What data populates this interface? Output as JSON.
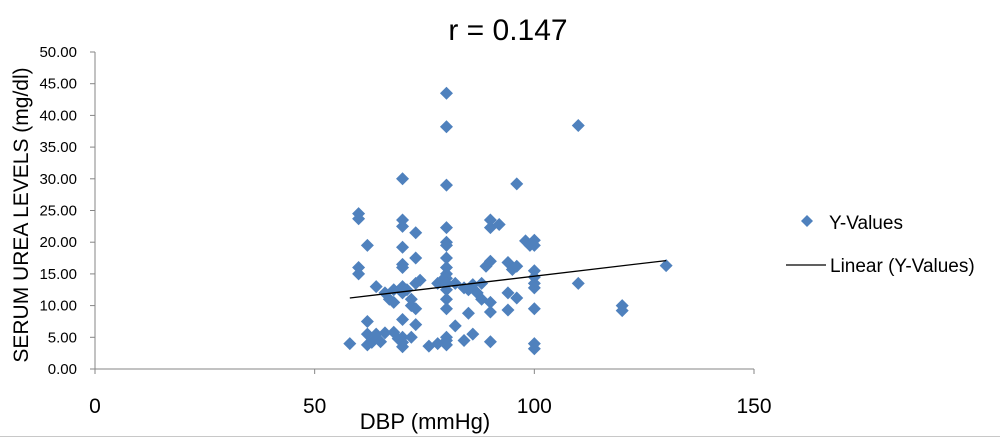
{
  "chart_data": {
    "type": "scatter",
    "title": "r = 0.147",
    "xlabel": "DBP (mmHg)",
    "ylabel": "SERUM UREA LEVELS (mg/dl)",
    "xlim": [
      0,
      150
    ],
    "ylim": [
      0,
      50
    ],
    "xticks": [
      "0",
      "50",
      "100",
      "150"
    ],
    "yticks": [
      "0.00",
      "5.00",
      "10.00",
      "15.00",
      "20.00",
      "25.00",
      "30.00",
      "35.00",
      "40.00",
      "45.00",
      "50.00"
    ],
    "grid": false,
    "legend_position": "right",
    "series": [
      {
        "name": "Y-Values",
        "marker": "diamond",
        "color": "#4f81bd",
        "points": [
          [
            58,
            4.0
          ],
          [
            60,
            24.5
          ],
          [
            60,
            23.7
          ],
          [
            60,
            16.0
          ],
          [
            60,
            15.0
          ],
          [
            62,
            19.5
          ],
          [
            62,
            7.5
          ],
          [
            62,
            5.5
          ],
          [
            62,
            3.8
          ],
          [
            63,
            4.2
          ],
          [
            64,
            13.0
          ],
          [
            64,
            5.5
          ],
          [
            65,
            4.3
          ],
          [
            66,
            12.0
          ],
          [
            66,
            5.7
          ],
          [
            67,
            11.0
          ],
          [
            68,
            12.5
          ],
          [
            68,
            10.5
          ],
          [
            68,
            5.8
          ],
          [
            69,
            4.8
          ],
          [
            70,
            30.0
          ],
          [
            70,
            23.5
          ],
          [
            70,
            22.5
          ],
          [
            70,
            19.2
          ],
          [
            70,
            16.5
          ],
          [
            70,
            16.0
          ],
          [
            70,
            13.0
          ],
          [
            70,
            12.0
          ],
          [
            70,
            7.8
          ],
          [
            70,
            5.0
          ],
          [
            70,
            4.2
          ],
          [
            70,
            3.5
          ],
          [
            71,
            12.5
          ],
          [
            72,
            11.0
          ],
          [
            72,
            10.0
          ],
          [
            72,
            5.0
          ],
          [
            73,
            21.5
          ],
          [
            73,
            17.5
          ],
          [
            73,
            13.5
          ],
          [
            73,
            9.5
          ],
          [
            73,
            7.0
          ],
          [
            74,
            14.0
          ],
          [
            76,
            3.6
          ],
          [
            78,
            13.5
          ],
          [
            78,
            4.0
          ],
          [
            79,
            14.0
          ],
          [
            80,
            43.5
          ],
          [
            80,
            38.2
          ],
          [
            80,
            29.0
          ],
          [
            80,
            22.3
          ],
          [
            80,
            20.0
          ],
          [
            80,
            19.5
          ],
          [
            80,
            17.5
          ],
          [
            80,
            16.0
          ],
          [
            80,
            15.0
          ],
          [
            80,
            14.3
          ],
          [
            80,
            13.5
          ],
          [
            80,
            12.5
          ],
          [
            80,
            11.0
          ],
          [
            80,
            9.5
          ],
          [
            80,
            5.0
          ],
          [
            80,
            4.5
          ],
          [
            80,
            3.8
          ],
          [
            82,
            13.5
          ],
          [
            82,
            6.8
          ],
          [
            84,
            12.8
          ],
          [
            84,
            4.5
          ],
          [
            85,
            12.5
          ],
          [
            85,
            8.8
          ],
          [
            86,
            13.3
          ],
          [
            86,
            5.5
          ],
          [
            87,
            12.0
          ],
          [
            88,
            13.5
          ],
          [
            88,
            11.0
          ],
          [
            89,
            16.2
          ],
          [
            90,
            23.5
          ],
          [
            90,
            22.3
          ],
          [
            90,
            17.0
          ],
          [
            90,
            10.5
          ],
          [
            90,
            9.0
          ],
          [
            90,
            4.3
          ],
          [
            92,
            22.8
          ],
          [
            94,
            16.8
          ],
          [
            94,
            12.0
          ],
          [
            94,
            9.3
          ],
          [
            95,
            15.7
          ],
          [
            96,
            29.2
          ],
          [
            96,
            16.2
          ],
          [
            96,
            11.2
          ],
          [
            98,
            20.2
          ],
          [
            99,
            19.5
          ],
          [
            100,
            20.3
          ],
          [
            100,
            19.5
          ],
          [
            100,
            15.5
          ],
          [
            100,
            14.5
          ],
          [
            100,
            13.5
          ],
          [
            100,
            12.8
          ],
          [
            100,
            9.5
          ],
          [
            100,
            4.0
          ],
          [
            100,
            3.2
          ],
          [
            110,
            38.4
          ],
          [
            110,
            13.5
          ],
          [
            120,
            10.0
          ],
          [
            120,
            9.2
          ],
          [
            130,
            16.3
          ]
        ]
      },
      {
        "name": "Linear (Y-Values)",
        "type": "line",
        "color": "#000000",
        "points": [
          [
            58,
            11.2
          ],
          [
            130,
            17.1
          ]
        ]
      }
    ]
  }
}
